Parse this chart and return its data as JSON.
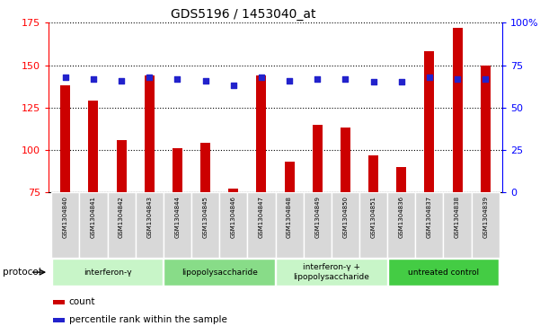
{
  "title": "GDS5196 / 1453040_at",
  "samples": [
    "GSM1304840",
    "GSM1304841",
    "GSM1304842",
    "GSM1304843",
    "GSM1304844",
    "GSM1304845",
    "GSM1304846",
    "GSM1304847",
    "GSM1304848",
    "GSM1304849",
    "GSM1304850",
    "GSM1304851",
    "GSM1304836",
    "GSM1304837",
    "GSM1304838",
    "GSM1304839"
  ],
  "counts": [
    138,
    129,
    106,
    144,
    101,
    104,
    77,
    144,
    93,
    115,
    113,
    97,
    90,
    158,
    172,
    150
  ],
  "percentile_ranks": [
    68,
    67,
    66,
    68,
    67,
    66,
    63,
    68,
    66,
    67,
    67,
    65,
    65,
    68,
    67,
    67
  ],
  "groups": [
    {
      "label": "interferon-γ",
      "start": 0,
      "end": 4,
      "color": "#c8f5c8"
    },
    {
      "label": "lipopolysaccharide",
      "start": 4,
      "end": 8,
      "color": "#88dc88"
    },
    {
      "label": "interferon-γ +\nlipopolysaccharide",
      "start": 8,
      "end": 12,
      "color": "#c8f5c8"
    },
    {
      "label": "untreated control",
      "start": 12,
      "end": 16,
      "color": "#44cc44"
    }
  ],
  "ylim_left": [
    75,
    175
  ],
  "ylim_right": [
    0,
    100
  ],
  "bar_color": "#cc0000",
  "dot_color": "#2222cc",
  "yticks_left": [
    75,
    100,
    125,
    150,
    175
  ],
  "yticks_right": [
    0,
    25,
    50,
    75,
    100
  ],
  "ytick_labels_right": [
    "0",
    "25",
    "50",
    "75",
    "100%"
  ],
  "background_color": "#ffffff",
  "sample_box_color": "#d8d8d8",
  "sample_box_border": "#ffffff"
}
